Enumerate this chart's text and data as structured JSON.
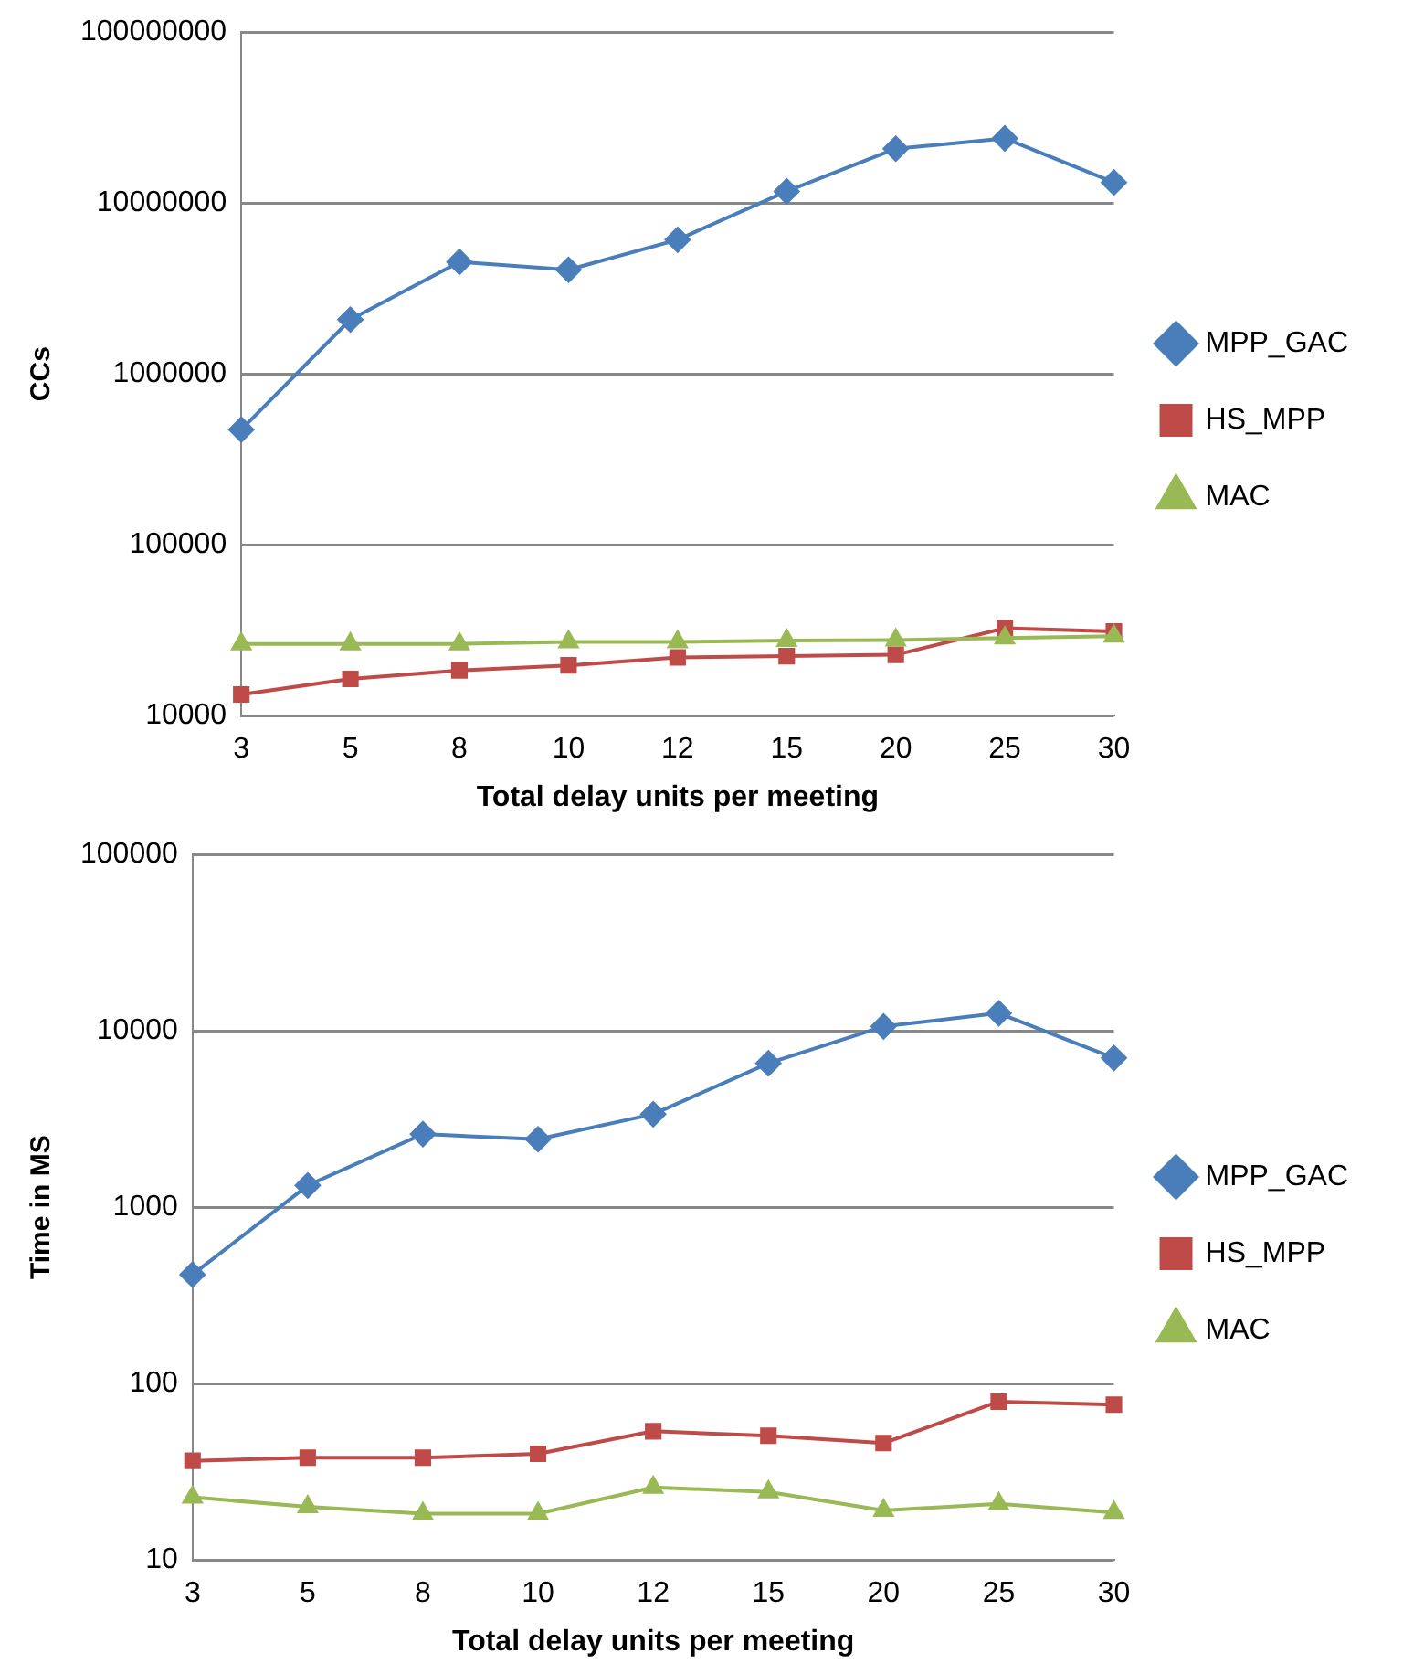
{
  "chart_data": [
    {
      "type": "line",
      "xlabel": "Total delay units per meeting",
      "ylabel": "CCs",
      "categories": [
        "3",
        "5",
        "8",
        "10",
        "12",
        "15",
        "20",
        "25",
        "30"
      ],
      "series": [
        {
          "name": "MPP_GAC",
          "color": "#4a7ebb",
          "marker": "diamond",
          "values": [
            472000,
            2080000,
            4520000,
            4070000,
            6100000,
            11700000,
            20800000,
            23900000,
            13200000
          ]
        },
        {
          "name": "HS_MPP",
          "color": "#be4b48",
          "marker": "square",
          "values": [
            13300,
            16400,
            18400,
            19700,
            21900,
            22300,
            22700,
            32500,
            31100
          ]
        },
        {
          "name": "MAC",
          "color": "#98b954",
          "marker": "triangle",
          "values": [
            26300,
            26300,
            26300,
            27000,
            27000,
            27500,
            27700,
            28500,
            29200
          ]
        }
      ],
      "log": "y",
      "ylim": [
        10000,
        100000000
      ],
      "yticks": [
        10000,
        100000,
        1000000,
        10000000,
        100000000
      ],
      "grid": "y",
      "legend": "right"
    },
    {
      "type": "line",
      "xlabel": "Total delay units per meeting",
      "ylabel": "Time in MS",
      "categories": [
        "3",
        "5",
        "8",
        "10",
        "12",
        "15",
        "20",
        "25",
        "30"
      ],
      "series": [
        {
          "name": "MPP_GAC",
          "color": "#4a7ebb",
          "marker": "diamond",
          "values": [
            415,
            1330,
            2600,
            2430,
            3370,
            6550,
            10600,
            12600,
            7020
          ]
        },
        {
          "name": "HS_MPP",
          "color": "#be4b48",
          "marker": "square",
          "values": [
            36.5,
            38,
            38,
            40,
            53.7,
            50.6,
            46,
            79,
            76
          ]
        },
        {
          "name": "MAC",
          "color": "#98b954",
          "marker": "triangle",
          "values": [
            22.7,
            20,
            18.3,
            18.3,
            25.8,
            24.3,
            19.1,
            20.8,
            18.6
          ]
        }
      ],
      "log": "y",
      "ylim": [
        10,
        100000
      ],
      "yticks": [
        10,
        100,
        1000,
        10000,
        100000
      ],
      "grid": "y",
      "legend": "right"
    }
  ]
}
